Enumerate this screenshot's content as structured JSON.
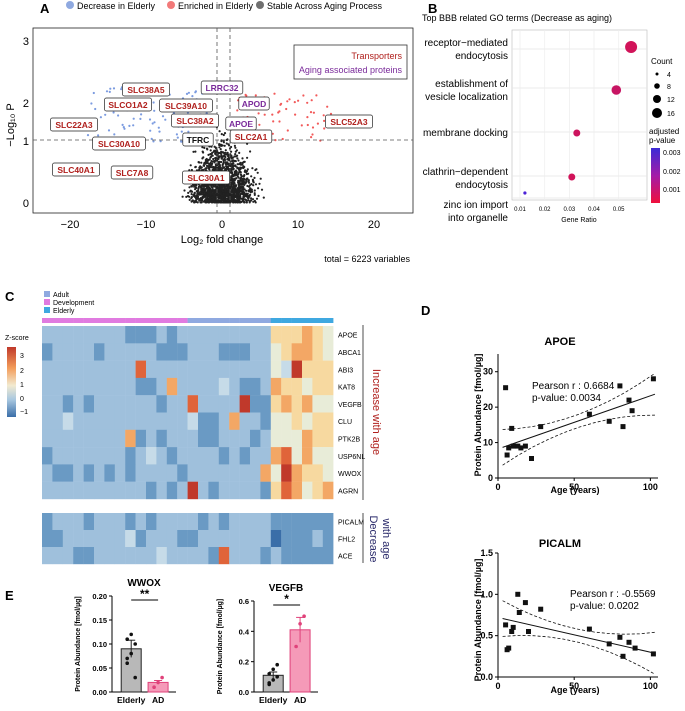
{
  "panel_labels": {
    "a": "A",
    "b": "B",
    "c": "C",
    "d": "D",
    "e": "E"
  },
  "volcano": {
    "legend": [
      "Decrease in Elderly",
      "Enriched in Elderly",
      "Stable Across Aging Process"
    ],
    "legend_colors": [
      "#8fa9e0",
      "#f27a7a",
      "#6f6f6f"
    ],
    "box_line1": "Transporters",
    "box_line2": "Aging associated proteins",
    "ylabel": "−Log₁₀ P",
    "xlabel": "Log₂ fold change",
    "total": "total = 6223 variables",
    "xticks": [
      "−20",
      "−10",
      "0",
      "10",
      "20"
    ],
    "yticks": [
      "0",
      "1",
      "2",
      "3"
    ],
    "genes": [
      {
        "name": "SLC38A5",
        "type": "transporter"
      },
      {
        "name": "LRRC32",
        "type": "aging"
      },
      {
        "name": "SLCO1A2",
        "type": "transporter"
      },
      {
        "name": "SLC39A10",
        "type": "transporter"
      },
      {
        "name": "APOD",
        "type": "aging"
      },
      {
        "name": "SLC22A3",
        "type": "transporter"
      },
      {
        "name": "SLC38A2",
        "type": "transporter"
      },
      {
        "name": "APOE",
        "type": "aging"
      },
      {
        "name": "SLC52A3",
        "type": "transporter"
      },
      {
        "name": "SLC30A10",
        "type": "transporter"
      },
      {
        "name": "TFRC",
        "type": "other"
      },
      {
        "name": "SLC2A1",
        "type": "transporter"
      },
      {
        "name": "SLC40A1",
        "type": "transporter"
      },
      {
        "name": "SLC7A8",
        "type": "transporter"
      },
      {
        "name": "SLC30A1",
        "type": "transporter"
      }
    ]
  },
  "go": {
    "title": "Top BBB related GO terms (Decrease as aging)",
    "terms": [
      {
        "l1": "receptor−mediated",
        "l2": "endocytosis",
        "ratio": 0.055,
        "count": 16,
        "padj": 0.0006
      },
      {
        "l1": "establishment of",
        "l2": "vesicle localization",
        "ratio": 0.049,
        "count": 12,
        "padj": 0.0008
      },
      {
        "l1": "membrane docking",
        "l2": "",
        "ratio": 0.033,
        "count": 8,
        "padj": 0.0007
      },
      {
        "l1": "clathrin−dependent",
        "l2": "endocytosis",
        "ratio": 0.031,
        "count": 8,
        "padj": 0.0006
      },
      {
        "l1": "zinc ion import",
        "l2": "into organelle",
        "ratio": 0.012,
        "count": 2,
        "padj": 0.0032
      }
    ],
    "xlabel": "Gene Ratio",
    "xticks": [
      "0.01",
      "0.02",
      "0.03",
      "0.04",
      "0.05"
    ],
    "count_title": "Count",
    "count_values": [
      "4",
      "8",
      "12",
      "16"
    ],
    "padj_title1": "adjusted",
    "padj_title2": "p-value",
    "padj_ticks": [
      "0.003",
      "0.002",
      "0.001"
    ]
  },
  "heatmap": {
    "legend": [
      "Adult",
      "Development",
      "Elderly"
    ],
    "legend_colors": [
      "#8fa9e0",
      "#e07be0",
      "#3fa8e0"
    ],
    "zscore_title": "Z-score",
    "zscore_ticks": [
      "3",
      "2",
      "1",
      "0",
      "−1"
    ],
    "genes_up": [
      "APOE",
      "ABCA1",
      "ABI3",
      "KAT8",
      "VEGFB",
      "CLU",
      "PTK2B",
      "USP6NL",
      "WWOX",
      "AGRN"
    ],
    "genes_down": [
      "PICALM",
      "FHL2",
      "ACE"
    ],
    "up_label": "Increase with age",
    "down_label1": "Decrease",
    "down_label2": "with age"
  },
  "scatter": {
    "apoe": {
      "title": "APOE",
      "pearson": "Pearson r : 0.6684",
      "pvalue": "p-value: 0.0034",
      "ylabel": "Protein Abundance [fmol/µg]",
      "xlabel": "Age (years)",
      "yticks": [
        "0",
        "10",
        "20",
        "30"
      ],
      "xticks": [
        "0",
        "50",
        "100"
      ],
      "ages": [
        5,
        6,
        7,
        9,
        10,
        13,
        15,
        18,
        22,
        28,
        60,
        73,
        80,
        82,
        86,
        88,
        102
      ],
      "values": [
        25.5,
        6.5,
        8.5,
        14,
        9,
        9,
        8.5,
        9,
        5.5,
        14.5,
        18,
        16,
        26,
        14.5,
        22,
        19,
        28
      ]
    },
    "picalm": {
      "title": "PICALM",
      "pearson": "Pearson r : -0.5569",
      "pvalue": "p-value: 0.0202",
      "ylabel": "Protein Abundance [fmol/µg]",
      "xlabel": "Age (years)",
      "yticks": [
        "0.0",
        "0.5",
        "1.0",
        "1.5"
      ],
      "xticks": [
        "0",
        "50",
        "100"
      ],
      "ages": [
        5,
        6,
        7,
        9,
        10,
        13,
        14,
        18,
        20,
        28,
        60,
        73,
        80,
        82,
        86,
        90,
        102
      ],
      "values": [
        0.63,
        0.33,
        0.35,
        0.55,
        0.6,
        1.0,
        0.78,
        0.9,
        0.55,
        0.82,
        0.58,
        0.4,
        0.48,
        0.25,
        0.42,
        0.35,
        0.28
      ]
    }
  },
  "chart_data": [
    {
      "type": "bar",
      "title": "WWOX",
      "categories": [
        "Elderly",
        "AD"
      ],
      "values": [
        0.09,
        0.02
      ],
      "ylabel": "Protein Abundance [fmol/µg]",
      "ylim": [
        0,
        0.2
      ],
      "yticks": [
        "0.00",
        "0.05",
        "0.10",
        "0.15",
        "0.20"
      ],
      "significance": "**",
      "points": [
        [
          0.07,
          0.08,
          0.1,
          0.11,
          0.12,
          0.03,
          0.06
        ],
        [
          0.01,
          0.02,
          0.03
        ]
      ]
    },
    {
      "type": "bar",
      "title": "VEGFB",
      "categories": [
        "Elderly",
        "AD"
      ],
      "values": [
        0.11,
        0.41
      ],
      "ylabel": "Protein Abundance [fmol/µg]",
      "ylim": [
        0,
        0.6
      ],
      "yticks": [
        "0.0",
        "0.2",
        "0.4",
        "0.6"
      ],
      "significance": "*",
      "points": [
        [
          0.05,
          0.08,
          0.1,
          0.12,
          0.15,
          0.18,
          0.06
        ],
        [
          0.3,
          0.45,
          0.5
        ]
      ]
    }
  ]
}
